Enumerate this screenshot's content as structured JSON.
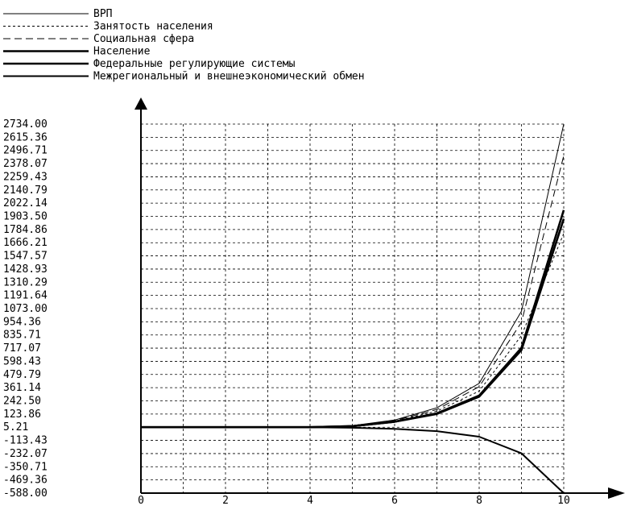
{
  "chart_data": {
    "type": "line",
    "legend_position": "top-left",
    "grid": true,
    "xlim": [
      0,
      10
    ],
    "ylim": [
      -588.0,
      2734.0
    ],
    "x_ticks": [
      "0",
      "2",
      "4",
      "6",
      "8",
      "10"
    ],
    "y_ticks": [
      "2734.00",
      "2615.36",
      "2496.71",
      "2378.07",
      "2259.43",
      "2140.79",
      "2022.14",
      "1903.50",
      "1784.86",
      "1666.21",
      "1547.57",
      "1428.93",
      "1310.29",
      "1191.64",
      "1073.00",
      "954.36",
      "835.71",
      "717.07",
      "598.43",
      "479.79",
      "361.14",
      "242.50",
      "123.86",
      "5.21",
      "-113.43",
      "-232.07",
      "-350.71",
      "-469.36",
      "-588.00"
    ],
    "x": [
      0,
      1,
      2,
      3,
      4,
      5,
      6,
      7,
      8,
      9,
      10
    ],
    "series": [
      {
        "name": "ВРП",
        "style": "thin",
        "values": [
          5,
          5,
          5,
          5,
          5,
          20,
          70,
          180,
          400,
          1050,
          2734
        ]
      },
      {
        "name": "Занятость населения",
        "style": "dotted",
        "values": [
          5,
          5,
          5,
          5,
          5,
          18,
          60,
          150,
          330,
          830,
          1750
        ]
      },
      {
        "name": "Социальная сфера",
        "style": "dashed",
        "values": [
          5,
          5,
          5,
          5,
          5,
          20,
          65,
          165,
          370,
          950,
          2450
        ]
      },
      {
        "name": "Население",
        "style": "thick",
        "values": [
          5,
          5,
          5,
          5,
          5,
          15,
          55,
          130,
          290,
          720,
          1960
        ]
      },
      {
        "name": "Федеральные регулирующие системы",
        "style": "thick",
        "values": [
          5,
          5,
          5,
          5,
          5,
          15,
          55,
          125,
          280,
          700,
          1880
        ]
      },
      {
        "name": "Межрегиональный и внешнеэкономический обмен",
        "style": "medium",
        "values": [
          5,
          5,
          5,
          5,
          5,
          0,
          -10,
          -30,
          -80,
          -230,
          -588
        ]
      }
    ]
  }
}
